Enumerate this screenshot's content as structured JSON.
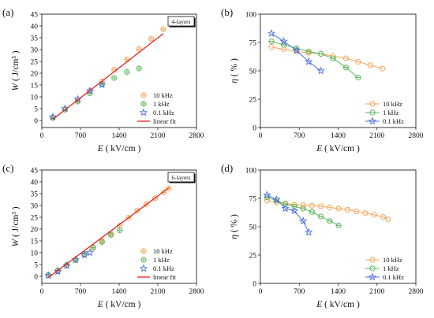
{
  "chart_data": [
    {
      "panel_label": "(a)",
      "type": "scatter",
      "badge": "4-layers",
      "xlabel": "E ( kV/cm )",
      "ylabel": "W ( J/cm³ )",
      "xlim": [
        0,
        2800
      ],
      "ylim": [
        -3,
        45
      ],
      "xticks": [
        0,
        700,
        1400,
        2100,
        2800
      ],
      "yticks": [
        0,
        5,
        10,
        15,
        20,
        25,
        30,
        35,
        40,
        45
      ],
      "legend_position": "bottom-right",
      "series": [
        {
          "name": "10 kHz",
          "marker": "circle-cross",
          "color": "#f5a65b",
          "x": [
            200,
            420,
            650,
            870,
            1090,
            1310,
            1540,
            1760,
            1980,
            2200
          ],
          "y": [
            1.0,
            4.5,
            8.5,
            12.5,
            16.5,
            21.5,
            25.8,
            30.2,
            34.6,
            38.6
          ]
        },
        {
          "name": "1 kHz",
          "marker": "circle-cross",
          "color": "#5cb85c",
          "x": [
            200,
            420,
            650,
            870,
            1090,
            1310,
            1540,
            1760
          ],
          "y": [
            1.2,
            4.6,
            8.0,
            11.5,
            15.2,
            18.0,
            20.5,
            22.0
          ]
        },
        {
          "name": "0.1 kHz",
          "marker": "star",
          "color": "#4a6fe3",
          "x": [
            200,
            420,
            650,
            870,
            1090
          ],
          "y": [
            1.5,
            5.0,
            9.0,
            12.5,
            15.2
          ]
        },
        {
          "name": "linear fit",
          "marker": "line",
          "color": "#e8231f",
          "x": [
            200,
            2200
          ],
          "y": [
            0.5,
            36.8
          ]
        }
      ]
    },
    {
      "panel_label": "(b)",
      "type": "line",
      "xlabel": "E ( kV/cm )",
      "ylabel": "η ( % )",
      "xlim": [
        0,
        2800
      ],
      "ylim": [
        0,
        100
      ],
      "xticks": [
        0,
        700,
        1400,
        2100,
        2800
      ],
      "yticks": [
        0,
        25,
        50,
        75,
        100
      ],
      "legend_position": "bottom-right",
      "series": [
        {
          "name": "10 kHz",
          "marker": "circle",
          "color": "#f5a65b",
          "x": [
            200,
            420,
            650,
            870,
            1090,
            1310,
            1540,
            1760,
            1980,
            2200
          ],
          "y": [
            71,
            69,
            67,
            66,
            65,
            63,
            61,
            58,
            55,
            52
          ]
        },
        {
          "name": "1 kHz",
          "marker": "diamond",
          "color": "#5cb85c",
          "x": [
            200,
            420,
            650,
            870,
            1090,
            1310,
            1540,
            1760
          ],
          "y": [
            76,
            73,
            70,
            67,
            65,
            61,
            53,
            44
          ]
        },
        {
          "name": "0.1 kHz",
          "marker": "star",
          "color": "#4a6fe3",
          "x": [
            200,
            420,
            650,
            870,
            1090
          ],
          "y": [
            83,
            76,
            68,
            58,
            50
          ]
        }
      ]
    },
    {
      "panel_label": "(c)",
      "type": "scatter",
      "badge": "6-layers",
      "xlabel": "E ( kV/cm )",
      "ylabel": "W ( J/cm³ )",
      "xlim": [
        0,
        2800
      ],
      "ylim": [
        -3,
        45
      ],
      "xticks": [
        0,
        700,
        1400,
        2100,
        2800
      ],
      "yticks": [
        0,
        5,
        10,
        15,
        20,
        25,
        30,
        35,
        40,
        45
      ],
      "legend_position": "bottom-right",
      "series": [
        {
          "name": "10 kHz",
          "marker": "circle-cross",
          "color": "#f5a65b",
          "x": [
            120,
            290,
            450,
            610,
            770,
            930,
            1090,
            1250,
            1410,
            1570,
            1730,
            1890,
            2050,
            2210,
            2300
          ],
          "y": [
            0.5,
            2.2,
            4.5,
            6.8,
            9.3,
            12.0,
            15.0,
            18.0,
            21.5,
            24.8,
            27.8,
            30.5,
            33.0,
            35.5,
            37.2
          ]
        },
        {
          "name": "1 kHz",
          "marker": "circle-cross",
          "color": "#5cb85c",
          "x": [
            120,
            290,
            450,
            610,
            770,
            930,
            1090,
            1250,
            1410
          ],
          "y": [
            0.5,
            2.5,
            4.8,
            7.0,
            9.5,
            12.2,
            14.5,
            17.5,
            19.5
          ]
        },
        {
          "name": "0.1 kHz",
          "marker": "star",
          "color": "#4a6fe3",
          "x": [
            120,
            290,
            450,
            610,
            770,
            870
          ],
          "y": [
            0.3,
            2.0,
            4.5,
            7.0,
            9.0,
            10.0
          ]
        },
        {
          "name": "linear fit",
          "marker": "line",
          "color": "#e8231f",
          "x": [
            120,
            2300
          ],
          "y": [
            -0.5,
            37.5
          ]
        }
      ]
    },
    {
      "panel_label": "(d)",
      "type": "line",
      "xlabel": "E ( kV/cm )",
      "ylabel": "η ( % )",
      "xlim": [
        0,
        2800
      ],
      "ylim": [
        0,
        100
      ],
      "xticks": [
        0,
        700,
        1400,
        2100,
        2800
      ],
      "yticks": [
        0,
        25,
        50,
        75,
        100
      ],
      "legend_position": "bottom-right",
      "series": [
        {
          "name": "10 kHz",
          "marker": "circle",
          "color": "#f5a65b",
          "x": [
            120,
            290,
            450,
            610,
            770,
            930,
            1090,
            1250,
            1410,
            1570,
            1730,
            1890,
            2050,
            2210,
            2300
          ],
          "y": [
            73,
            71.5,
            70.5,
            69.5,
            69,
            68.5,
            68,
            67,
            66,
            65,
            63.5,
            62,
            60.5,
            58.5,
            56.5
          ]
        },
        {
          "name": "1 kHz",
          "marker": "diamond",
          "color": "#5cb85c",
          "x": [
            120,
            290,
            450,
            610,
            770,
            930,
            1090,
            1250,
            1410
          ],
          "y": [
            76,
            73,
            70,
            68,
            66,
            63,
            59,
            55,
            51
          ]
        },
        {
          "name": "0.1 kHz",
          "marker": "star",
          "color": "#4a6fe3",
          "x": [
            120,
            290,
            450,
            610,
            770,
            870
          ],
          "y": [
            78,
            74,
            66,
            64,
            55,
            45
          ]
        }
      ]
    }
  ]
}
